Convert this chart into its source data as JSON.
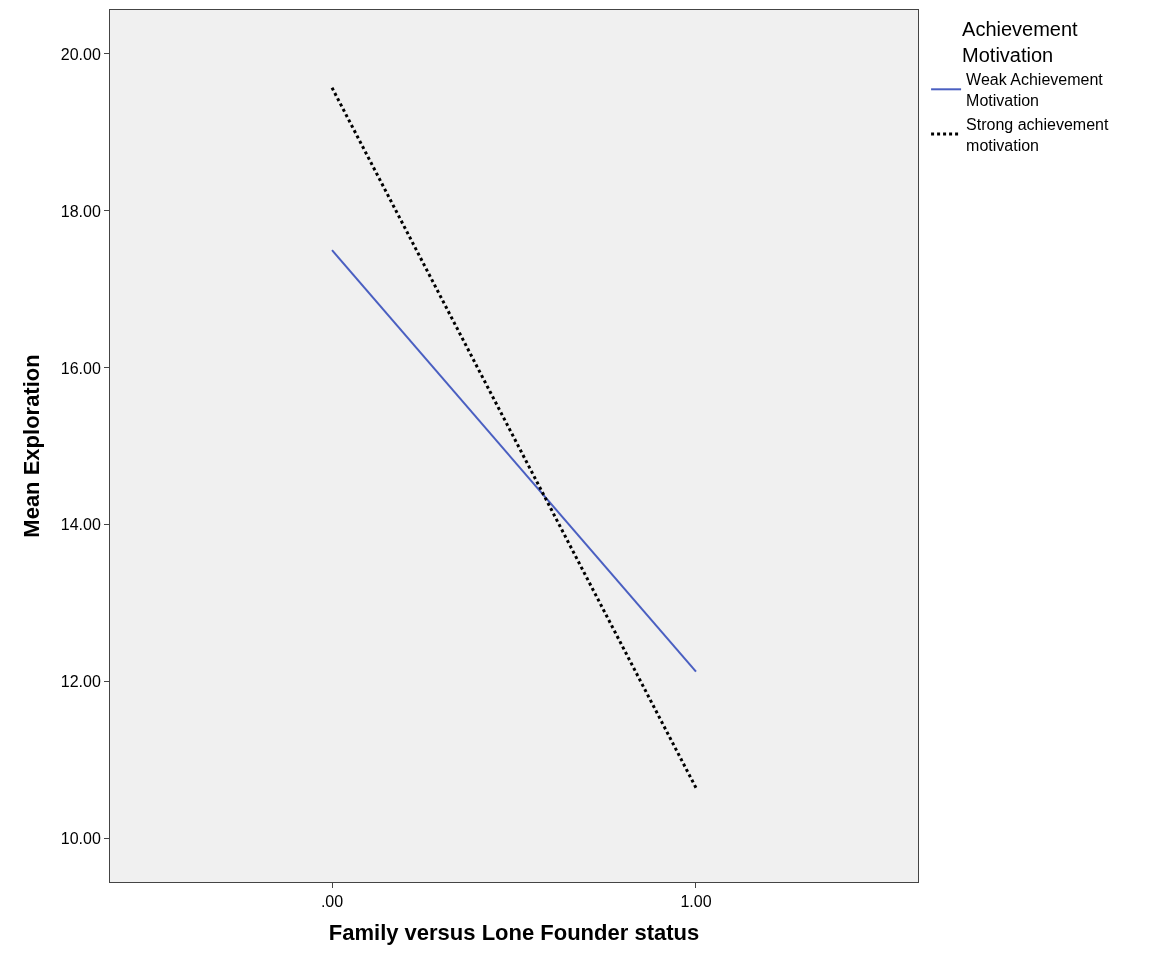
{
  "chart_data": {
    "type": "line",
    "xlabel": "Family versus Lone Founder status",
    "ylabel": "Mean Exploration",
    "legend_title": "Achievement Motivation",
    "x": [
      0,
      1
    ],
    "series": [
      {
        "name": "Weak Achievement Motivation",
        "color": "#4a5fc1",
        "values": [
          17.5,
          12.13
        ],
        "line_style": "solid"
      },
      {
        "name": "Strong achievement motivation",
        "color": "#000000",
        "values": [
          19.57,
          10.65
        ],
        "line_style": "dotted"
      }
    ],
    "xlim": [
      -0.61,
      1.61
    ],
    "xticks": [
      {
        "value": 0,
        "label": ".00"
      },
      {
        "value": 1,
        "label": "1.00"
      }
    ],
    "ylim": [
      9.45,
      20.56
    ],
    "yticks": [
      {
        "value": 10,
        "label": "10.00"
      },
      {
        "value": 12,
        "label": "12.00"
      },
      {
        "value": 14,
        "label": "14.00"
      },
      {
        "value": 16,
        "label": "16.00"
      },
      {
        "value": 18,
        "label": "18.00"
      },
      {
        "value": 20,
        "label": "20.00"
      }
    ],
    "grid": false,
    "legend": "top right",
    "marker": "none"
  }
}
